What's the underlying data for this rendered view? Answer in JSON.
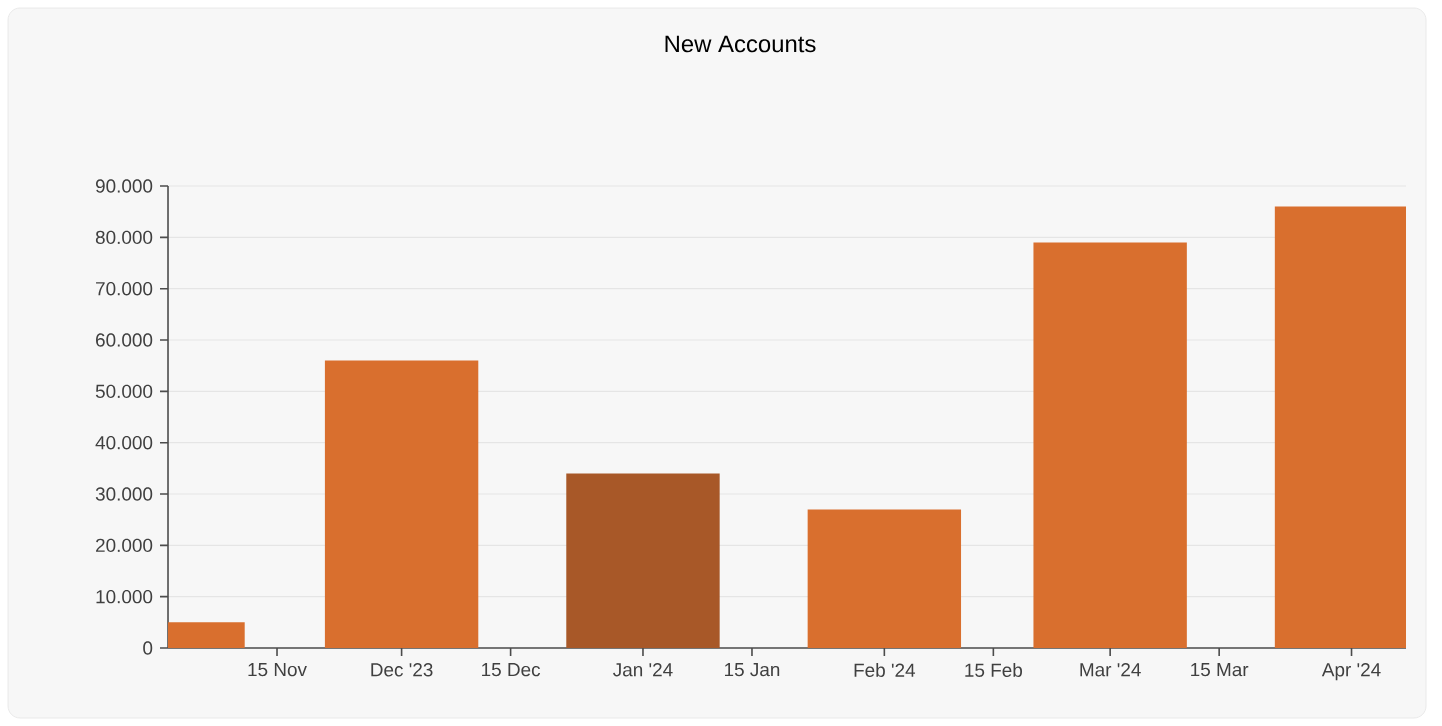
{
  "chart_data": {
    "type": "bar",
    "title": "New Accounts",
    "x": [
      "2023-11-01",
      "2023-12-01",
      "2024-01-01",
      "2024-02-01",
      "2024-03-01",
      "2024-04-01"
    ],
    "values": [
      5000,
      56000,
      34000,
      27000,
      79000,
      86000
    ],
    "colors": [
      "#d96f2e",
      "#d96f2e",
      "#a85828",
      "#d96f2e",
      "#d96f2e",
      "#d96f2e"
    ],
    "xlim": [
      "2023-11-01",
      "2024-04-08"
    ],
    "xticks": [
      {
        "value": "2023-11-15",
        "label": "15 Nov"
      },
      {
        "value": "2023-12-01",
        "label": "Dec '23"
      },
      {
        "value": "2023-12-15",
        "label": "15 Dec"
      },
      {
        "value": "2024-01-01",
        "label": "Jan '24"
      },
      {
        "value": "2024-01-15",
        "label": "15 Jan"
      },
      {
        "value": "2024-02-01",
        "label": "Feb '24"
      },
      {
        "value": "2024-02-15",
        "label": "15 Feb"
      },
      {
        "value": "2024-03-01",
        "label": "Mar '24"
      },
      {
        "value": "2024-03-15",
        "label": "15 Mar"
      },
      {
        "value": "2024-04-01",
        "label": "Apr '24"
      }
    ],
    "ylim": [
      0,
      90000
    ],
    "yticks": [
      0,
      {
        "value": 10000,
        "label": "10.000"
      },
      {
        "value": 20000,
        "label": "20.000"
      },
      {
        "value": 30000,
        "label": "30.000"
      },
      {
        "value": 40000,
        "label": "40.000"
      },
      {
        "value": 50000,
        "label": "50.000"
      },
      {
        "value": 60000,
        "label": "60.000"
      },
      {
        "value": 70000,
        "label": "70.000"
      },
      {
        "value": 80000,
        "label": "80.000"
      },
      {
        "value": 90000,
        "label": "90.000"
      }
    ],
    "grid": "y"
  }
}
